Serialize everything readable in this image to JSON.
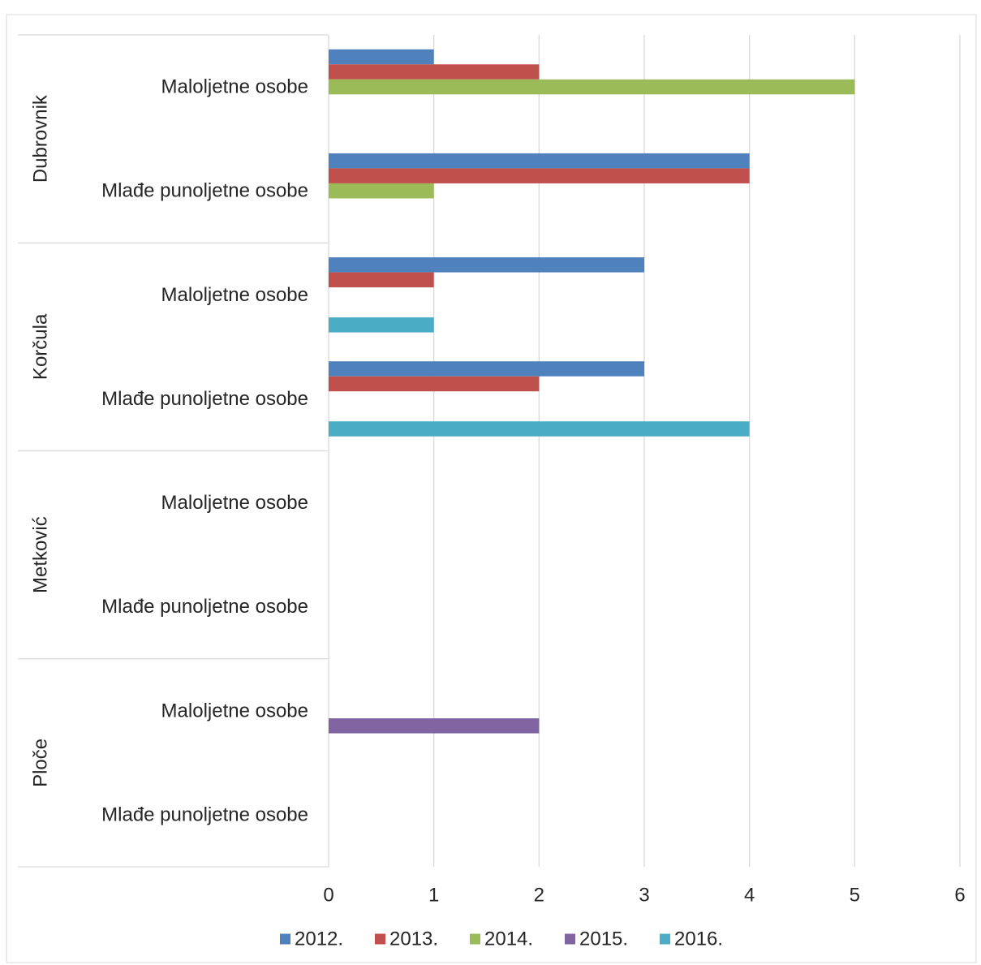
{
  "chart_data": {
    "type": "bar",
    "orientation": "horizontal",
    "title": "",
    "xlabel": "",
    "ylabel": "",
    "xlim": [
      0,
      6
    ],
    "x_ticks": [
      "0",
      "1",
      "2",
      "3",
      "4",
      "5",
      "6"
    ],
    "grid": true,
    "legend_position": "bottom",
    "groups": [
      {
        "name": "Dubrovnik",
        "categories": [
          "Maloljetne osobe",
          "Mlađe punoljetne osobe"
        ]
      },
      {
        "name": "Korčula",
        "categories": [
          "Maloljetne osobe",
          "Mlađe punoljetne osobe"
        ]
      },
      {
        "name": "Metković",
        "categories": [
          "Maloljetne osobe",
          "Mlađe punoljetne osobe"
        ]
      },
      {
        "name": "Ploče",
        "categories": [
          "Maloljetne osobe",
          "Mlađe punoljetne osobe"
        ]
      }
    ],
    "series": [
      {
        "name": "2012.",
        "color": "#4f81bd",
        "values": [
          1,
          4,
          3,
          3,
          0,
          0,
          0,
          0
        ]
      },
      {
        "name": "2013.",
        "color": "#c0504d",
        "values": [
          2,
          4,
          1,
          2,
          0,
          0,
          0,
          0
        ]
      },
      {
        "name": "2014.",
        "color": "#9bbb59",
        "values": [
          5,
          1,
          0,
          0,
          0,
          0,
          0,
          0
        ]
      },
      {
        "name": "2015.",
        "color": "#8064a2",
        "values": [
          0,
          0,
          0,
          0,
          0,
          0,
          2,
          0
        ]
      },
      {
        "name": "2016.",
        "color": "#4bacc6",
        "values": [
          0,
          0,
          1,
          4,
          0,
          0,
          0,
          0
        ]
      }
    ]
  }
}
